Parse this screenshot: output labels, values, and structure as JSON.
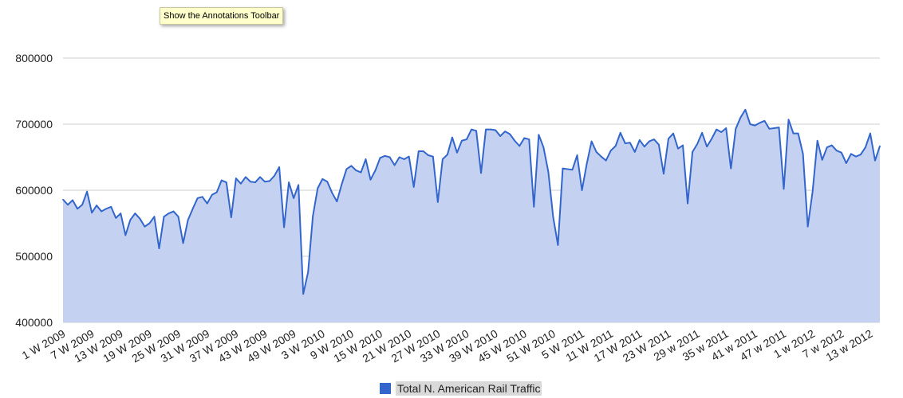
{
  "tooltip": {
    "text": "Show the Annotations Toolbar"
  },
  "colors": {
    "line": "#3366cc",
    "area": "#c4d1f0",
    "grid": "#cccccc",
    "legend_label_bg": "#d9d9d9"
  },
  "chart_data": {
    "type": "area",
    "title": "",
    "xlabel": "",
    "ylabel": "",
    "ylim": [
      400000,
      800000
    ],
    "yticks": [
      400000,
      500000,
      600000,
      700000,
      800000
    ],
    "grid": true,
    "legend_position": "bottom",
    "x_tick_labels": [
      "1 W 2009",
      "7 W 2009",
      "13 W 2009",
      "19 W 2009",
      "25 W 2009",
      "31 W 2009",
      "37 W 2009",
      "43 W 2009",
      "49 W 2009",
      "3 W 2010",
      "9 W 2010",
      "15 W 2010",
      "21 W 2010",
      "27 W 2010",
      "33 W 2010",
      "39 W 2010",
      "45 W 2010",
      "51 W 2010",
      "5 W 2011",
      "11 W 2011",
      "17 W 2011",
      "23 W 2011",
      "29 w 2011",
      "35 w 2011",
      "41 w 2011",
      "47 w 2011",
      "1 w 2012",
      "7 w 2012",
      "13 w 2012"
    ],
    "series": [
      {
        "name": "Total N. American Rail Traffic",
        "values": [
          586000,
          578000,
          585000,
          572000,
          578000,
          598000,
          566000,
          577000,
          568000,
          572000,
          575000,
          558000,
          565000,
          532000,
          555000,
          565000,
          557000,
          545000,
          550000,
          560000,
          512000,
          560000,
          565000,
          568000,
          560000,
          520000,
          555000,
          572000,
          588000,
          590000,
          580000,
          593000,
          597000,
          615000,
          612000,
          559000,
          618000,
          610000,
          620000,
          613000,
          612000,
          620000,
          613000,
          614000,
          622000,
          635000,
          544000,
          612000,
          588000,
          608000,
          443000,
          476000,
          561000,
          603000,
          617000,
          613000,
          596000,
          583000,
          609000,
          632000,
          637000,
          630000,
          627000,
          647000,
          616000,
          630000,
          649000,
          652000,
          650000,
          638000,
          650000,
          647000,
          651000,
          605000,
          659000,
          659000,
          653000,
          651000,
          582000,
          647000,
          654000,
          680000,
          657000,
          675000,
          677000,
          692000,
          690000,
          626000,
          692000,
          692000,
          691000,
          682000,
          689000,
          685000,
          675000,
          667000,
          679000,
          677000,
          575000,
          684000,
          665000,
          628000,
          560000,
          517000,
          633000,
          632000,
          631000,
          653000,
          600000,
          640000,
          674000,
          658000,
          651000,
          645000,
          660000,
          667000,
          687000,
          671000,
          672000,
          658000,
          676000,
          666000,
          674000,
          677000,
          669000,
          625000,
          678000,
          686000,
          663000,
          668000,
          580000,
          658000,
          670000,
          687000,
          666000,
          678000,
          692000,
          688000,
          694000,
          633000,
          693000,
          710000,
          722000,
          700000,
          698000,
          702000,
          705000,
          693000,
          694000,
          695000,
          602000,
          707000,
          686000,
          686000,
          655000,
          545000,
          598000,
          675000,
          646000,
          665000,
          668000,
          660000,
          657000,
          641000,
          655000,
          651000,
          654000,
          665000,
          686000,
          645000,
          667000
        ]
      }
    ]
  }
}
